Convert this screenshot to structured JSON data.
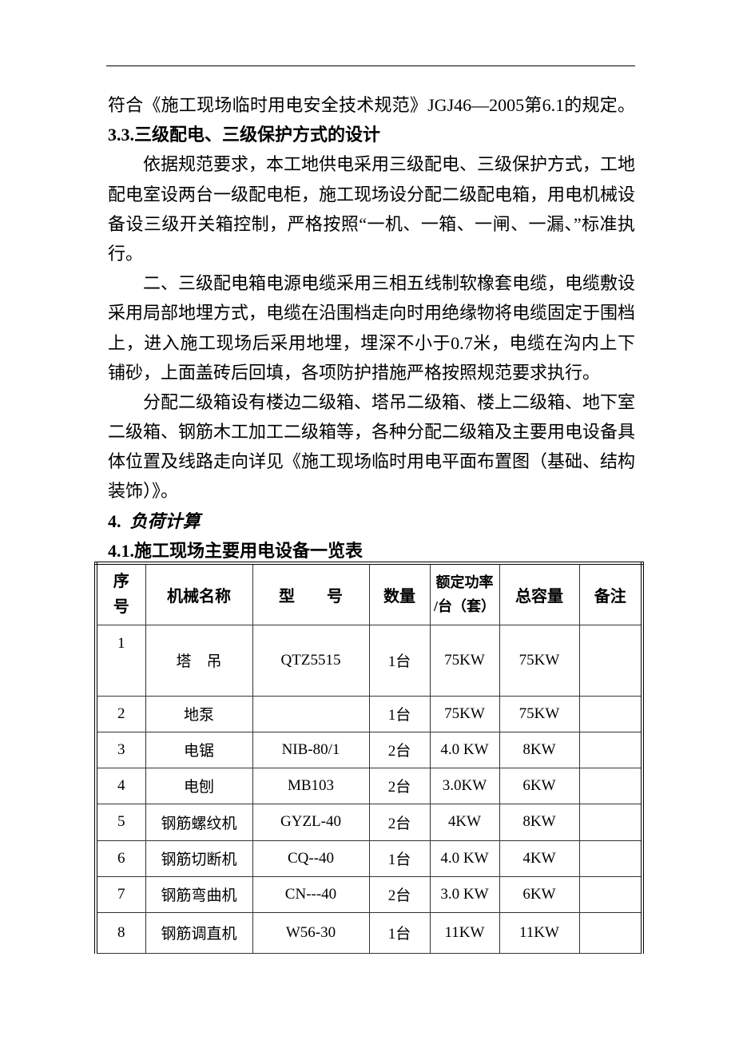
{
  "paragraph_lines": [
    "符合《施工现场临时用电安全技术规范》JGJ46—2005第6.1的规定。",
    "3.3.三级配电、三级保护方式的设计",
    "依据规范要求，本工地供电采用三级配电、三级保护方式，工地",
    "配电室设两台一级配电柜，施工现场设分配二级配电箱，用电机械设",
    "备设三级开关箱控制，严格按照“一机、一箱、一闸、一漏、”标准执",
    "行。",
    "二、三级配电箱电源电缆采用三相五线制软橡套电缆，电缆敷设",
    "采用局部地埋方式，电缆在沿围档走向时用绝缘物将电缆固定于围档",
    "上，进入施工现场后采用地埋，埋深不小于0.7米，电缆在沟内上下",
    "铺砂，上面盖砖后回填，各项防护措施严格按照规范要求执行。",
    "分配二级箱设有楼边二级箱、塔吊二级箱、楼上二级箱、地下室",
    "二级箱、钢筋木工加工二级箱等，各种分配二级箱及主要用电设备具",
    "体位置及线路走向详见《施工现场临时用电平面布置图（基础、结构",
    "装饰）》。"
  ],
  "section4": {
    "number": "4.",
    "title": "负荷计算"
  },
  "section41": "4.1.施工现场主要用电设备一览表",
  "table": {
    "headers": [
      "序号",
      "机械名称",
      "型　　号",
      "数量",
      "额定功率/台（套）",
      "总容量",
      "备注"
    ],
    "header_power_line1": "额定功率",
    "header_power_line2": "/台（套）",
    "rows": [
      [
        "1",
        "塔　吊",
        "QTZ5515",
        "1台",
        "75KW",
        "75KW",
        ""
      ],
      [
        "2",
        "地泵",
        "",
        "1台",
        "75KW",
        "75KW",
        ""
      ],
      [
        "3",
        "电锯",
        "NIB-80/1",
        "2台",
        "4.0 KW",
        "8KW",
        ""
      ],
      [
        "4",
        "电刨",
        "MB103",
        "2台",
        "3.0KW",
        "6KW",
        ""
      ],
      [
        "5",
        "钢筋螺纹机",
        "GYZL-40",
        "2台",
        "4KW",
        "8KW",
        ""
      ],
      [
        "6",
        "钢筋切断机",
        "CQ--40",
        "1台",
        "4.0 KW",
        "4KW",
        ""
      ],
      [
        "7",
        "钢筋弯曲机",
        "CN---40",
        "2台",
        "3.0 KW",
        "6KW",
        ""
      ],
      [
        "8",
        "钢筋调直机",
        "W56-30",
        "1台",
        "11KW",
        "11KW",
        ""
      ]
    ]
  }
}
